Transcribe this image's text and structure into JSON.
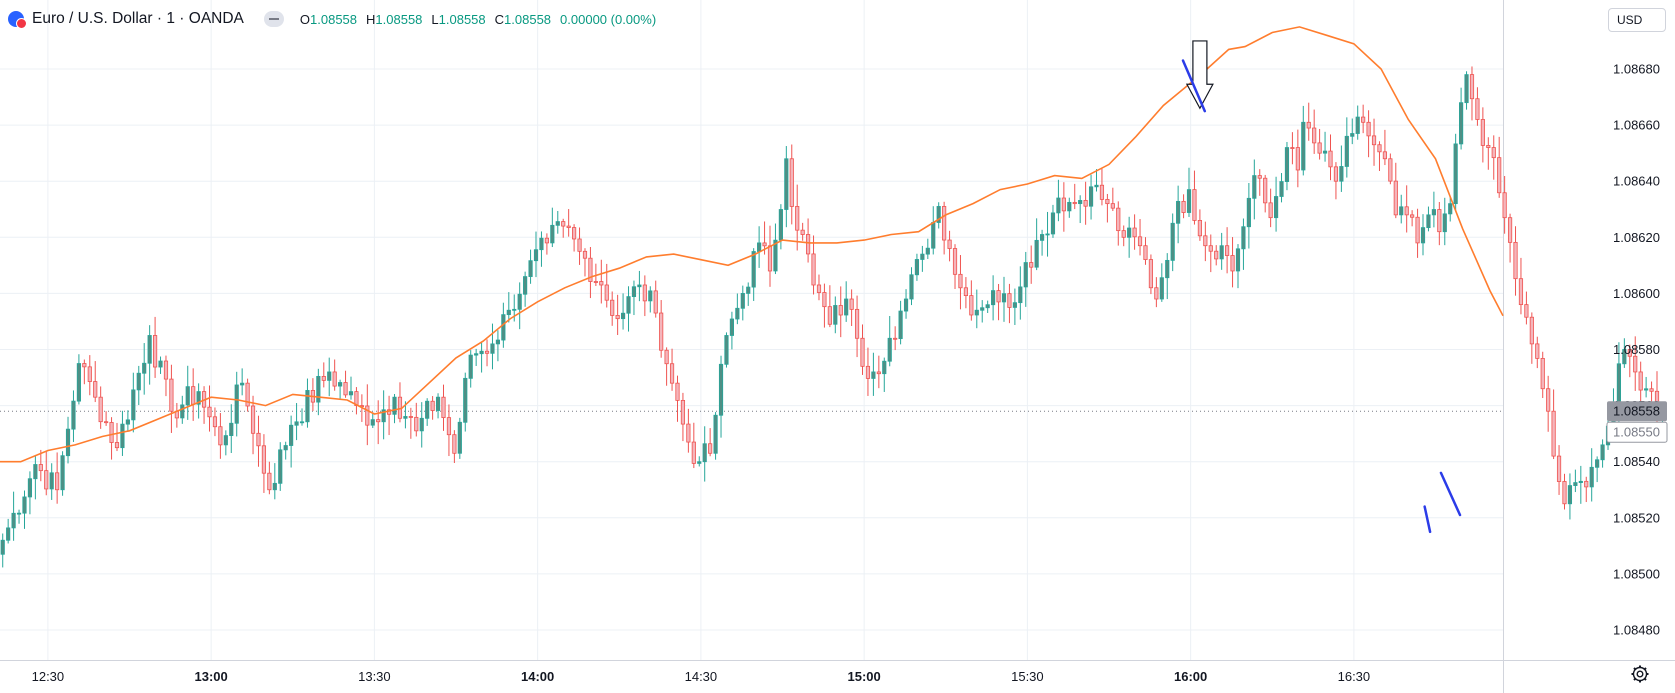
{
  "header": {
    "title": "Euro / U.S. Dollar · 1 · OANDA",
    "ohlc": [
      {
        "key": "O",
        "value": "1.08558"
      },
      {
        "key": "H",
        "value": "1.08558"
      },
      {
        "key": "L",
        "value": "1.08558"
      },
      {
        "key": "C",
        "value": "1.08558"
      }
    ],
    "change": "0.00000 (0.00%)",
    "currency": "USD"
  },
  "icons": {
    "symbol": "currency-pair-flag-icon",
    "visibility": "eye-toggle-icon",
    "settings": "gear-icon"
  },
  "colors": {
    "up": "#26a69a",
    "down": "#ef5350",
    "up_fill": "#4f8f85",
    "down_fill": "#f5b5bb",
    "moving_average": "#ff7d2e",
    "annotation": "#2b3ce8",
    "grid": "#ecf0f5"
  },
  "chart_data": {
    "type": "candlestick",
    "ylim": [
      1.08465,
      1.08695
    ],
    "y_ticks": [
      "1.08680",
      "1.08660",
      "1.08640",
      "1.08620",
      "1.08600",
      "1.08580",
      "1.08560",
      "1.08540",
      "1.08520",
      "1.08500",
      "1.08480"
    ],
    "x_ticks": [
      {
        "label": "12:30",
        "minute": 750,
        "bold": false
      },
      {
        "label": "13:00",
        "minute": 780,
        "bold": true
      },
      {
        "label": "13:30",
        "minute": 810,
        "bold": false
      },
      {
        "label": "14:00",
        "minute": 840,
        "bold": true
      },
      {
        "label": "14:30",
        "minute": 870,
        "bold": false
      },
      {
        "label": "15:00",
        "minute": 900,
        "bold": true
      },
      {
        "label": "15:30",
        "minute": 930,
        "bold": false
      },
      {
        "label": "16:00",
        "minute": 960,
        "bold": true
      },
      {
        "label": "16:30",
        "minute": 990,
        "bold": false
      }
    ],
    "x_range_minutes": [
      741.2,
      1017.4
    ],
    "last_price_label": "1.08558",
    "secondary_price_label": "1.08550",
    "last_price": 1.08558,
    "series": [
      {
        "name": "",
        "type": "candlestick",
        "start_minute": 741.2,
        "interval_minutes": 1,
        "anchors": [
          [
            0,
            1.08512
          ],
          [
            6,
            1.08539
          ],
          [
            10,
            1.0853
          ],
          [
            14,
            1.08575
          ],
          [
            17,
            1.08563
          ],
          [
            21,
            1.08545
          ],
          [
            27,
            1.08585
          ],
          [
            31,
            1.08558
          ],
          [
            36,
            1.08565
          ],
          [
            40,
            1.08546
          ],
          [
            44,
            1.08568
          ],
          [
            49,
            1.0853
          ],
          [
            53,
            1.08553
          ],
          [
            60,
            1.08572
          ],
          [
            65,
            1.0856
          ],
          [
            68,
            1.08555
          ],
          [
            72,
            1.08563
          ],
          [
            76,
            1.08551
          ],
          [
            80,
            1.08563
          ],
          [
            83,
            1.08543
          ],
          [
            86,
            1.08578
          ],
          [
            90,
            1.08582
          ],
          [
            93,
            1.08594
          ],
          [
            96,
            1.08606
          ],
          [
            100,
            1.08618
          ],
          [
            103,
            1.08624
          ],
          [
            106,
            1.08615
          ],
          [
            110,
            1.08603
          ],
          [
            113,
            1.08591
          ],
          [
            117,
            1.08603
          ],
          [
            120,
            1.08593
          ],
          [
            123,
            1.08568
          ],
          [
            126,
            1.08547
          ],
          [
            128,
            1.0854
          ],
          [
            130,
            1.08543
          ],
          [
            133,
            1.08585
          ],
          [
            136,
            1.086
          ],
          [
            139,
            1.08618
          ],
          [
            141,
            1.08608
          ],
          [
            144,
            1.08648
          ],
          [
            145,
            1.08631
          ],
          [
            147,
            1.08621
          ],
          [
            149,
            1.08603
          ],
          [
            152,
            1.08589
          ],
          [
            155,
            1.08598
          ],
          [
            157,
            1.08584
          ],
          [
            158,
            1.08574
          ],
          [
            160,
            1.08572
          ],
          [
            163,
            1.08584
          ],
          [
            166,
            1.08598
          ],
          [
            169,
            1.08614
          ],
          [
            172,
            1.08631
          ],
          [
            174,
            1.08616
          ],
          [
            176,
            1.08602
          ],
          [
            179,
            1.08594
          ],
          [
            182,
            1.08601
          ],
          [
            185,
            1.08595
          ],
          [
            188,
            1.08611
          ],
          [
            191,
            1.08621
          ],
          [
            194,
            1.08634
          ],
          [
            197,
            1.08632
          ],
          [
            200,
            1.08638
          ],
          [
            203,
            1.08632
          ],
          [
            206,
            1.0862
          ],
          [
            209,
            1.08617
          ],
          [
            212,
            1.08598
          ],
          [
            215,
            1.08625
          ],
          [
            218,
            1.08637
          ],
          [
            221,
            1.08617
          ],
          [
            224,
            1.08617
          ],
          [
            226,
            1.08608
          ],
          [
            230,
            1.08642
          ],
          [
            233,
            1.08627
          ],
          [
            236,
            1.08652
          ],
          [
            238,
            1.08644
          ],
          [
            239,
            1.08661
          ],
          [
            242,
            1.0865
          ],
          [
            245,
            1.0864
          ],
          [
            248,
            1.08657
          ],
          [
            250,
            1.08661
          ],
          [
            252,
            1.08653
          ],
          [
            254,
            1.08648
          ],
          [
            256,
            1.08628
          ],
          [
            258,
            1.08628
          ],
          [
            260,
            1.08618
          ],
          [
            262,
            1.08628
          ],
          [
            264,
            1.08622
          ],
          [
            266,
            1.08632
          ],
          [
            268,
            1.08668
          ],
          [
            269,
            1.08678
          ],
          [
            271,
            1.08662
          ],
          [
            273,
            1.08652
          ],
          [
            276,
            1.08627
          ],
          [
            279,
            1.08596
          ],
          [
            281,
            1.08582
          ],
          [
            284,
            1.08558
          ],
          [
            285,
            1.08542
          ],
          [
            287,
            1.08525
          ],
          [
            290,
            1.08533
          ],
          [
            292,
            1.08538
          ],
          [
            294,
            1.08546
          ],
          [
            296,
            1.0856
          ],
          [
            298,
            1.0858
          ],
          [
            300,
            1.08572
          ],
          [
            302,
            1.08566
          ],
          [
            305,
            1.08558
          ]
        ],
        "note_anchors": "Candle closes at [minute offset from first bar, price]; intermediate bars are interpolated."
      },
      {
        "name": "",
        "type": "moving_average",
        "points": [
          [
            741.2,
            1.0854
          ],
          [
            745,
            1.0854
          ],
          [
            750,
            1.08544
          ],
          [
            755,
            1.08546
          ],
          [
            760,
            1.08549
          ],
          [
            765,
            1.08551
          ],
          [
            770,
            1.08555
          ],
          [
            775,
            1.08559
          ],
          [
            780,
            1.08563
          ],
          [
            785,
            1.08562
          ],
          [
            790,
            1.0856
          ],
          [
            795,
            1.08564
          ],
          [
            800,
            1.08563
          ],
          [
            805,
            1.08562
          ],
          [
            810,
            1.08557
          ],
          [
            815,
            1.08559
          ],
          [
            820,
            1.08568
          ],
          [
            825,
            1.08577
          ],
          [
            830,
            1.08583
          ],
          [
            835,
            1.08591
          ],
          [
            840,
            1.08597
          ],
          [
            845,
            1.08602
          ],
          [
            850,
            1.08606
          ],
          [
            855,
            1.08609
          ],
          [
            860,
            1.08613
          ],
          [
            865,
            1.08614
          ],
          [
            870,
            1.08612
          ],
          [
            875,
            1.0861
          ],
          [
            880,
            1.08614
          ],
          [
            885,
            1.08619
          ],
          [
            890,
            1.08618
          ],
          [
            895,
            1.08618
          ],
          [
            900,
            1.08619
          ],
          [
            905,
            1.08621
          ],
          [
            910,
            1.08622
          ],
          [
            915,
            1.08628
          ],
          [
            920,
            1.08632
          ],
          [
            925,
            1.08637
          ],
          [
            930,
            1.08639
          ],
          [
            935,
            1.08642
          ],
          [
            940,
            1.08641
          ],
          [
            945,
            1.08646
          ],
          [
            950,
            1.08656
          ],
          [
            955,
            1.08667
          ],
          [
            960,
            1.08675
          ],
          [
            963,
            1.0868
          ],
          [
            967,
            1.08687
          ],
          [
            970,
            1.08688
          ],
          [
            975,
            1.08693
          ],
          [
            980,
            1.08695
          ],
          [
            985,
            1.08692
          ],
          [
            990,
            1.08689
          ],
          [
            995,
            1.0868
          ],
          [
            1000,
            1.08662
          ],
          [
            1005,
            1.08648
          ],
          [
            1010,
            1.08623
          ],
          [
            1015,
            1.08601
          ],
          [
            1017.4,
            1.08592
          ]
        ]
      }
    ],
    "annotations": [
      {
        "type": "arrow-down",
        "minute": 961.7,
        "price_top": 1.0869,
        "price_tip": 1.08666
      },
      {
        "type": "line",
        "from": [
          958.6,
          1.08683
        ],
        "to": [
          962.6,
          1.08665
        ]
      },
      {
        "type": "line",
        "from": [
          1003.0,
          1.08524
        ],
        "to": [
          1004.0,
          1.08515
        ]
      },
      {
        "type": "line",
        "from": [
          1006.0,
          1.08536
        ],
        "to": [
          1009.5,
          1.08521
        ]
      }
    ],
    "grid": true
  }
}
